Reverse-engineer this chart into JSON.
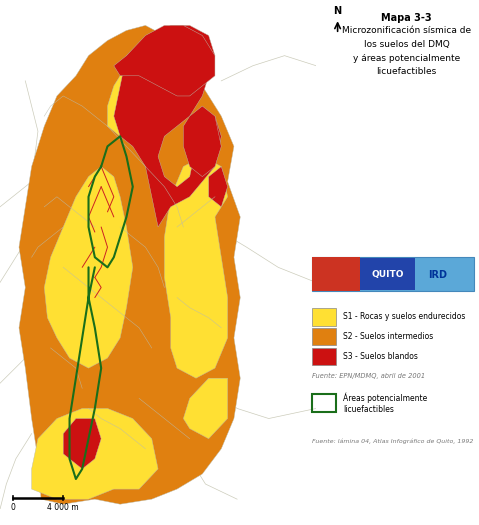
{
  "title_line1": "Mapa 3-3",
  "title_line2": "Microzonificación sísmica de",
  "title_line3": "los suelos del DMQ",
  "title_line4": "y áreas potencialmente",
  "title_line5": "licuefactibles",
  "legend_items": [
    {
      "label": "S1 - Rocas y suelos endurecidos",
      "color": "#FFE033"
    },
    {
      "label": "S2 - Suelos intermedios",
      "color": "#E08010"
    },
    {
      "label": "S3 - Suelos blandos",
      "color": "#CC1111"
    }
  ],
  "legend_green_label": "Áreas potencialmente\nlicuefactibles",
  "legend_green_color": "#1A6E1A",
  "source1": "Fuente: EPN/MDMQ, abril de 2001",
  "source2": "Fuente: lámina 04, Atlas Infográfico de Quito, 1992",
  "scale_label": "4 000 m",
  "bg_color": "#FFFFFF",
  "s1_color": "#FFE033",
  "s2_color": "#E08010",
  "s3_color": "#CC1111",
  "green_outline": "#1A6E1A",
  "river_color": "#CC2222",
  "boundary_color": "#BBBBAA",
  "fig_width": 4.79,
  "fig_height": 5.25,
  "dpi": 100
}
